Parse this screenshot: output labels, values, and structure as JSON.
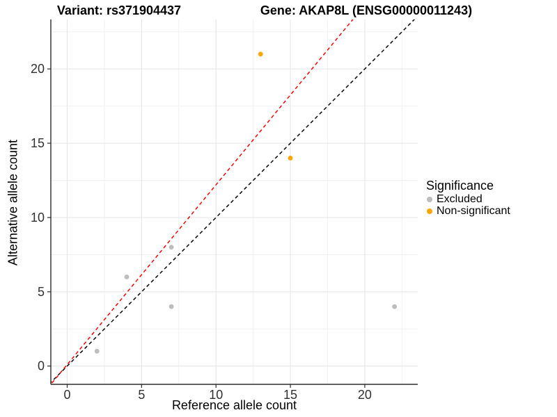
{
  "header": {
    "variant_title": "Variant: rs371904437",
    "gene_title": "Gene: AKAP8L (ENSG00000011243)"
  },
  "axes": {
    "x_label": "Reference allele count",
    "y_label": "Alternative allele count"
  },
  "legend": {
    "title": "Significance",
    "items": [
      {
        "label": "Excluded",
        "color": "#BDBDBD"
      },
      {
        "label": "Non-significant",
        "color": "#FFA500"
      }
    ]
  },
  "chart_data": {
    "type": "scatter",
    "title": "Variant: rs371904437 — Gene: AKAP8L (ENSG00000011243)",
    "xlabel": "Reference allele count",
    "ylabel": "Alternative allele count",
    "xlim": [
      -1.1,
      23.56
    ],
    "ylim": [
      -1.23,
      23.33
    ],
    "x_ticks": [
      0,
      5,
      10,
      15,
      20
    ],
    "y_ticks": [
      0,
      5,
      10,
      15,
      20
    ],
    "x_minor_ticks": [
      2.5,
      7.5,
      12.5,
      17.5,
      22.5
    ],
    "y_minor_ticks": [
      2.5,
      7.5,
      12.5,
      17.5,
      22.5
    ],
    "grid": true,
    "legend_position": "right",
    "series": [
      {
        "name": "Excluded",
        "color": "#BDBDBD",
        "points": [
          [
            2,
            1
          ],
          [
            4,
            6
          ],
          [
            7,
            8
          ],
          [
            7,
            4
          ],
          [
            22,
            4
          ]
        ]
      },
      {
        "name": "Non-significant",
        "color": "#FFA500",
        "points": [
          [
            13,
            21
          ],
          [
            15,
            14
          ]
        ]
      }
    ],
    "ablines": [
      {
        "name": "identity-line",
        "slope": 1,
        "intercept": 0,
        "color": "#000000"
      },
      {
        "name": "fit-line",
        "slope": 1.21,
        "intercept": 0.1,
        "color": "#FF0000"
      }
    ],
    "colors": {
      "major_grid": "#E4E4E4",
      "minor_grid": "#F1F1F1",
      "axis_line": "#2b2b2b",
      "tick_label": "#303030"
    }
  }
}
